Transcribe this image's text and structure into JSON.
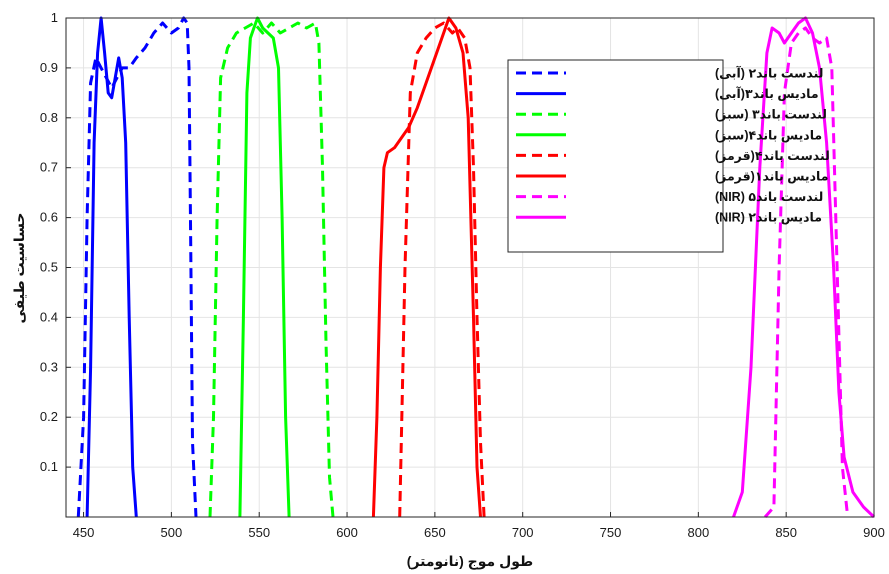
{
  "chart_data": {
    "type": "line",
    "title": "",
    "xlabel": "طول موج (نانومتر)",
    "ylabel": "حساسیت طیفی",
    "xlim": [
      440,
      900
    ],
    "ylim": [
      0,
      1
    ],
    "xticks": [
      450,
      500,
      550,
      600,
      650,
      700,
      750,
      800,
      850,
      900
    ],
    "yticks": [
      0.1,
      0.2,
      0.3,
      0.4,
      0.5,
      0.6,
      0.7,
      0.8,
      0.9,
      1
    ],
    "grid": true,
    "legend_position": "top-right",
    "series": [
      {
        "name": "لندست باند۲ (آبی)",
        "color": "#0000ff",
        "dash": "dashed",
        "points": [
          [
            447,
            0
          ],
          [
            450,
            0.2
          ],
          [
            452,
            0.6
          ],
          [
            454,
            0.87
          ],
          [
            457,
            0.92
          ],
          [
            460,
            0.9
          ],
          [
            463,
            0.88
          ],
          [
            466,
            0.86
          ],
          [
            469,
            0.88
          ],
          [
            472,
            0.9
          ],
          [
            476,
            0.9
          ],
          [
            480,
            0.92
          ],
          [
            485,
            0.94
          ],
          [
            490,
            0.97
          ],
          [
            495,
            0.99
          ],
          [
            500,
            0.97
          ],
          [
            504,
            0.98
          ],
          [
            507,
            1.0
          ],
          [
            509,
            0.99
          ],
          [
            510,
            0.9
          ],
          [
            511,
            0.55
          ],
          [
            512,
            0.15
          ],
          [
            514,
            0
          ]
        ]
      },
      {
        "name": "مادیس باند۳(آبی)",
        "color": "#0000ff",
        "dash": "solid",
        "points": [
          [
            452,
            0
          ],
          [
            454,
            0.3
          ],
          [
            456,
            0.75
          ],
          [
            458,
            0.93
          ],
          [
            460,
            1.0
          ],
          [
            462,
            0.93
          ],
          [
            464,
            0.85
          ],
          [
            466,
            0.84
          ],
          [
            468,
            0.88
          ],
          [
            470,
            0.92
          ],
          [
            472,
            0.88
          ],
          [
            474,
            0.75
          ],
          [
            476,
            0.4
          ],
          [
            478,
            0.1
          ],
          [
            480,
            0
          ]
        ]
      },
      {
        "name": "لندست باند۳ (سبز)",
        "color": "#00ff00",
        "dash": "dashed",
        "points": [
          [
            522,
            0
          ],
          [
            524,
            0.2
          ],
          [
            526,
            0.6
          ],
          [
            528,
            0.88
          ],
          [
            532,
            0.94
          ],
          [
            537,
            0.97
          ],
          [
            542,
            0.98
          ],
          [
            547,
            0.99
          ],
          [
            552,
            0.97
          ],
          [
            557,
            0.99
          ],
          [
            562,
            0.97
          ],
          [
            567,
            0.98
          ],
          [
            572,
            0.99
          ],
          [
            577,
            0.98
          ],
          [
            582,
            0.99
          ],
          [
            584,
            0.95
          ],
          [
            586,
            0.7
          ],
          [
            588,
            0.35
          ],
          [
            590,
            0.08
          ],
          [
            592,
            0
          ]
        ]
      },
      {
        "name": "مادیس باند۴(سبز)",
        "color": "#00ff00",
        "dash": "solid",
        "points": [
          [
            539,
            0
          ],
          [
            541,
            0.4
          ],
          [
            543,
            0.85
          ],
          [
            545,
            0.96
          ],
          [
            547,
            0.98
          ],
          [
            549,
            1.0
          ],
          [
            552,
            0.98
          ],
          [
            555,
            0.97
          ],
          [
            558,
            0.96
          ],
          [
            561,
            0.9
          ],
          [
            563,
            0.6
          ],
          [
            565,
            0.2
          ],
          [
            567,
            0
          ]
        ]
      },
      {
        "name": "لندست باند۴(قرمز)",
        "color": "#ff0000",
        "dash": "dashed",
        "points": [
          [
            630,
            0
          ],
          [
            633,
            0.5
          ],
          [
            636,
            0.85
          ],
          [
            640,
            0.93
          ],
          [
            645,
            0.96
          ],
          [
            650,
            0.98
          ],
          [
            655,
            0.99
          ],
          [
            660,
            0.97
          ],
          [
            663,
            0.98
          ],
          [
            667,
            0.96
          ],
          [
            670,
            0.9
          ],
          [
            672,
            0.7
          ],
          [
            674,
            0.4
          ],
          [
            676,
            0.15
          ],
          [
            678,
            0
          ]
        ]
      },
      {
        "name": "مادیس باند۱(قرمز)",
        "color": "#ff0000",
        "dash": "solid",
        "points": [
          [
            615,
            0
          ],
          [
            617,
            0.2
          ],
          [
            619,
            0.5
          ],
          [
            621,
            0.7
          ],
          [
            623,
            0.73
          ],
          [
            627,
            0.74
          ],
          [
            631,
            0.76
          ],
          [
            635,
            0.78
          ],
          [
            640,
            0.82
          ],
          [
            645,
            0.87
          ],
          [
            650,
            0.92
          ],
          [
            654,
            0.96
          ],
          [
            658,
            1.0
          ],
          [
            662,
            0.98
          ],
          [
            666,
            0.93
          ],
          [
            669,
            0.8
          ],
          [
            672,
            0.4
          ],
          [
            674,
            0.1
          ],
          [
            676,
            0
          ]
        ]
      },
      {
        "name": "لندست باند۵ (NIR)",
        "color": "#ff00ff",
        "dash": "dashed",
        "points": [
          [
            838,
            0
          ],
          [
            843,
            0.02
          ],
          [
            846,
            0.5
          ],
          [
            849,
            0.85
          ],
          [
            853,
            0.95
          ],
          [
            857,
            0.97
          ],
          [
            861,
            0.98
          ],
          [
            865,
            0.96
          ],
          [
            869,
            0.95
          ],
          [
            873,
            0.96
          ],
          [
            876,
            0.9
          ],
          [
            879,
            0.5
          ],
          [
            882,
            0.1
          ],
          [
            885,
            0
          ]
        ]
      },
      {
        "name": "مادیس باند۲ (NIR)",
        "color": "#ff00ff",
        "dash": "solid",
        "points": [
          [
            820,
            0
          ],
          [
            825,
            0.05
          ],
          [
            830,
            0.3
          ],
          [
            835,
            0.7
          ],
          [
            839,
            0.93
          ],
          [
            842,
            0.98
          ],
          [
            846,
            0.97
          ],
          [
            849,
            0.95
          ],
          [
            853,
            0.97
          ],
          [
            857,
            0.99
          ],
          [
            861,
            1.0
          ],
          [
            865,
            0.97
          ],
          [
            869,
            0.9
          ],
          [
            873,
            0.75
          ],
          [
            877,
            0.5
          ],
          [
            880,
            0.25
          ],
          [
            883,
            0.12
          ],
          [
            888,
            0.05
          ],
          [
            894,
            0.02
          ],
          [
            900,
            0
          ]
        ]
      }
    ]
  }
}
